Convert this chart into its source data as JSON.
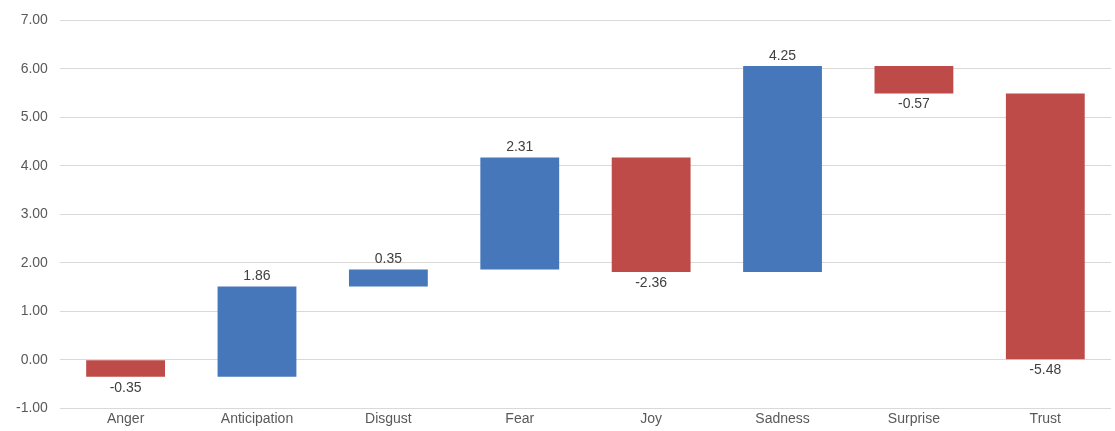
{
  "chart_data": {
    "type": "bar",
    "categories": [
      "Anger",
      "Anticipation",
      "Disgust",
      "Fear",
      "Joy",
      "Sadness",
      "Surprise",
      "Trust"
    ],
    "values": [
      -0.35,
      1.86,
      0.35,
      2.31,
      -2.36,
      4.25,
      -0.57,
      -5.48
    ],
    "base": [
      0,
      -0.35,
      1.51,
      1.86,
      4.17,
      1.81,
      6.06,
      5.49
    ],
    "colors": [
      "#be4b48",
      "#4677ba",
      "#4677ba",
      "#4677ba",
      "#be4b48",
      "#4677ba",
      "#be4b48",
      "#be4b48"
    ],
    "ylim": [
      -1,
      7
    ],
    "yticks": [
      {
        "value": -1,
        "label": "-1.00"
      },
      {
        "value": 0,
        "label": "0.00"
      },
      {
        "value": 1,
        "label": "1.00"
      },
      {
        "value": 2,
        "label": "2.00"
      },
      {
        "value": 3,
        "label": "3.00"
      },
      {
        "value": 4,
        "label": "4.00"
      },
      {
        "value": 5,
        "label": "5.00"
      },
      {
        "value": 6,
        "label": "6.00"
      },
      {
        "value": 7,
        "label": "7.00"
      }
    ],
    "grid": "y",
    "legend": false,
    "data_labels": true
  }
}
